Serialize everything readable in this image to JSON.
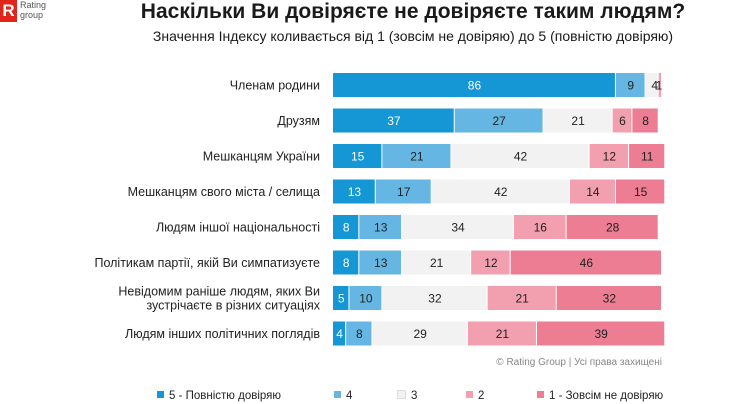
{
  "logo": {
    "mark": "R",
    "text_line1": "Rating",
    "text_line2": "group"
  },
  "title": "Наскільки Ви довіряєте не довіряєте таким людям?",
  "subtitle": "Значення Індексу коливається від 1 (зовсім не довіряю) до 5 (повністю довіряю)",
  "copyright": "© Rating Group | Усі права захищені",
  "colors": {
    "s5": "#1497d4",
    "s4": "#66b6e3",
    "s3": "#f2f2f2",
    "s2": "#f2a0b0",
    "s1": "#ec7d93"
  },
  "chart_data": {
    "type": "bar",
    "orientation": "horizontal",
    "stacked": true,
    "title": "Наскільки Ви довіряєте не довіряєте таким людям?",
    "subtitle": "Значення Індексу коливається від 1 (зовсім не довіряю) до 5 (повністю довіряю)",
    "categories": [
      [
        "Членам родини"
      ],
      [
        "Друзям"
      ],
      [
        "Мешканцям України"
      ],
      [
        "Мешканцям свого міста / селища"
      ],
      [
        "Людям іншої національності"
      ],
      [
        "Політикам партії, якій Ви симпатизуєте"
      ],
      [
        "Невідомим раніше людям, яких Ви",
        "зустрічаєте в різних ситуаціях"
      ],
      [
        "Людям інших політичних поглядів"
      ]
    ],
    "series": [
      {
        "name": "5 - Повністю довіряю",
        "key": "s5",
        "values": [
          86,
          37,
          15,
          13,
          8,
          8,
          5,
          4
        ]
      },
      {
        "name": "4",
        "key": "s4",
        "values": [
          9,
          27,
          21,
          17,
          13,
          13,
          10,
          8
        ]
      },
      {
        "name": "3",
        "key": "s3",
        "values": [
          4,
          21,
          42,
          42,
          34,
          21,
          32,
          29
        ]
      },
      {
        "name": "2",
        "key": "s2",
        "values": [
          1,
          6,
          12,
          14,
          16,
          12,
          21,
          21
        ]
      },
      {
        "name": "1 - Зовсім не довіряю",
        "key": "s1",
        "values": [
          0,
          8,
          11,
          15,
          28,
          46,
          32,
          39
        ]
      }
    ],
    "value_labels": [
      [
        "86",
        "9",
        "4",
        "1",
        ""
      ],
      [
        "37",
        "27",
        "21",
        "6",
        "8"
      ],
      [
        "15",
        "21",
        "42",
        "12",
        "11"
      ],
      [
        "13",
        "17",
        "42",
        "14",
        "15"
      ],
      [
        "8",
        "13",
        "34",
        "16",
        "28"
      ],
      [
        "8",
        "13",
        "21",
        "12",
        "46"
      ],
      [
        "5",
        "10",
        "32",
        "21",
        "32"
      ],
      [
        "4",
        "8",
        "29",
        "21",
        "39"
      ]
    ],
    "xlim": [
      0,
      100
    ],
    "legend_position": "bottom",
    "grid": false
  }
}
